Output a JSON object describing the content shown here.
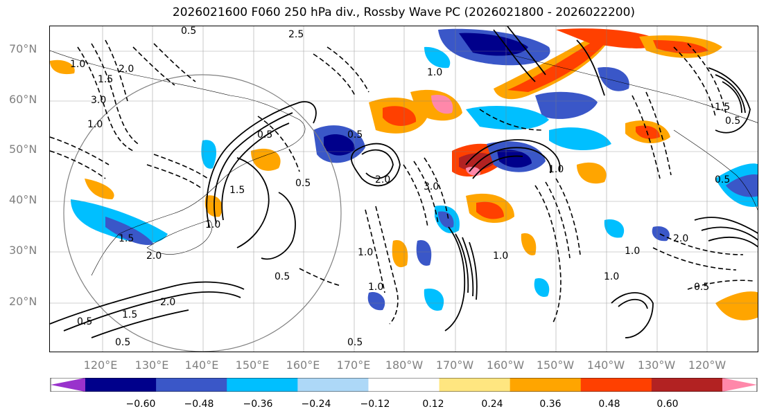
{
  "title": "2026021600 F060 250 hPa div., Rossby Wave PC (2026021800 - 2026022200)",
  "latitude_labels": [
    "70°N",
    "60°N",
    "50°N",
    "40°N",
    "30°N",
    "20°N"
  ],
  "longitude_labels": [
    "120°E",
    "130°E",
    "140°E",
    "150°E",
    "160°E",
    "170°E",
    "180°W",
    "170°W",
    "160°W",
    "150°W",
    "140°W",
    "130°W",
    "120°W"
  ],
  "colorbar": {
    "ticks": [
      "−0.60",
      "−0.48",
      "−0.36",
      "−0.24",
      "−0.12",
      "0.12",
      "0.24",
      "0.36",
      "0.48",
      "0.60"
    ],
    "colors": [
      "#9932cc",
      "#00008b",
      "#3a57c8",
      "#00bfff",
      "#add8f7",
      "#ffffff",
      "#ffe680",
      "#ffa500",
      "#ff4000",
      "#b22222",
      "#ff88aa"
    ]
  },
  "contour_labels": [
    "0.5",
    "1.0",
    "1.5",
    "2.0",
    "2.5",
    "3.0",
    "1.0",
    "0.5",
    "1.5",
    "2.0",
    "0.5",
    "1.0",
    "0.5",
    "1.0",
    "1.5",
    "2.0",
    "3.0",
    "1.0",
    "0.5",
    "1.0",
    "1.5",
    "2.0",
    "0.5",
    "1.0",
    "2.0",
    "1.0",
    "1.5",
    "0.5",
    "1.0",
    "0.5",
    "0.5",
    "0.5",
    "1.0",
    "0.5"
  ]
}
